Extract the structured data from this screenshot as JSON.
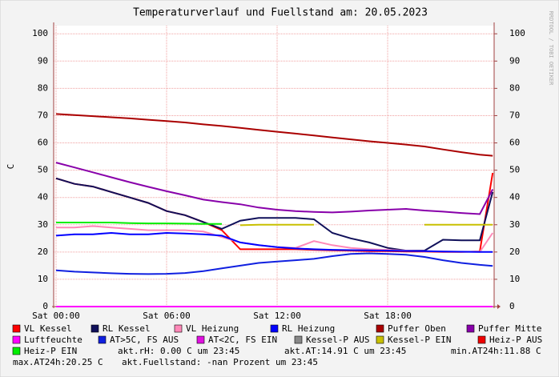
{
  "chart_data": {
    "type": "line",
    "title": "Temperaturverlauf und Fuellstand am: 20.05.2023",
    "ylabel": "C",
    "watermark": "RRDTOOL / TOBI OETIKER",
    "grid": true,
    "x": [
      0,
      1,
      2,
      3,
      4,
      5,
      6,
      7,
      8,
      9,
      10,
      11,
      12,
      13,
      14,
      15,
      16,
      17,
      18,
      19,
      20,
      21,
      22,
      23,
      23.7
    ],
    "xlim": [
      -0.13,
      23.78
    ],
    "xticks": [
      {
        "value": 0,
        "label": "Sat 00:00"
      },
      {
        "value": 6,
        "label": "Sat 06:00"
      },
      {
        "value": 12,
        "label": "Sat 12:00"
      },
      {
        "value": 18,
        "label": "Sat 18:00"
      }
    ],
    "ylim": [
      0,
      103
    ],
    "yticks": [
      0,
      10,
      20,
      30,
      40,
      50,
      60,
      70,
      80,
      90,
      100
    ],
    "y2lim": [
      0,
      103
    ],
    "y2ticks": [
      0,
      10,
      20,
      30,
      40,
      50,
      60,
      70,
      80,
      90,
      100
    ],
    "series": [
      {
        "name": "VL Kessel",
        "color": "#ff0000",
        "values": [
          47,
          45,
          44,
          42,
          40,
          38,
          35,
          33.5,
          31,
          28,
          21,
          21,
          21,
          21,
          20.8,
          20.6,
          20.5,
          20.3,
          20.3,
          20.2,
          20.2,
          20,
          20,
          20.2,
          49
        ]
      },
      {
        "name": "RL Kessel",
        "color": "#10105a",
        "values": [
          47,
          45,
          44,
          42,
          40,
          38,
          35,
          33.5,
          31,
          28.5,
          31.5,
          32.5,
          32.5,
          32.5,
          32,
          27,
          25,
          23.5,
          21.5,
          20.5,
          20.5,
          24.5,
          24.3,
          24.3,
          42
        ]
      },
      {
        "name": "VL Heizung",
        "color": "#ff88b8",
        "values": [
          29,
          29,
          29.5,
          29,
          28.5,
          28,
          28,
          28,
          27.5,
          25.5,
          23.5,
          22.5,
          21.8,
          21.5,
          24,
          22.5,
          21.5,
          21,
          20.8,
          20.5,
          20.3,
          20.2,
          20.1,
          20,
          27
        ]
      },
      {
        "name": "RL Heizung",
        "color": "#0000ff",
        "values": [
          26,
          26.5,
          26.5,
          27,
          26.5,
          26.5,
          27,
          26.8,
          26.5,
          26,
          23.5,
          22.5,
          21.8,
          21.3,
          21,
          20.8,
          20.7,
          20.6,
          20.5,
          20.4,
          20.3,
          20.2,
          20.1,
          20,
          20
        ]
      },
      {
        "name": "Puffer Oben",
        "color": "#aa0000",
        "values": [
          70.6,
          70.2,
          69.8,
          69.4,
          69,
          68.5,
          68,
          67.5,
          66.8,
          66.2,
          65.5,
          64.8,
          64.1,
          63.4,
          62.7,
          62,
          61.3,
          60.6,
          60,
          59.4,
          58.7,
          57.6,
          56.6,
          55.7,
          55.3
        ]
      },
      {
        "name": "Puffer Mitte",
        "color": "#8800aa",
        "values": [
          52.8,
          51,
          49.2,
          47.4,
          45.6,
          43.9,
          42.3,
          40.8,
          39.2,
          38.3,
          37.5,
          36.3,
          35.5,
          35,
          34.7,
          34.5,
          34.8,
          35.2,
          35.5,
          35.8,
          35.2,
          34.8,
          34.3,
          33.9,
          43
        ]
      },
      {
        "name": "Luftfeuchte",
        "color": "#ff00ff",
        "values": [
          0,
          0,
          0,
          0,
          0,
          0,
          0,
          0,
          0,
          0,
          0,
          0,
          0,
          0,
          0,
          0,
          0,
          0,
          0,
          0,
          0,
          0,
          0,
          0,
          0
        ]
      },
      {
        "name": "AT>5C, FS AUS",
        "color": "#1020e0",
        "values": [
          13.3,
          12.8,
          12.5,
          12.2,
          12,
          11.9,
          12,
          12.3,
          13,
          14,
          15,
          16,
          16.5,
          17,
          17.5,
          18.5,
          19.3,
          19.5,
          19.3,
          19,
          18.2,
          17,
          16,
          15.3,
          14.9
        ]
      },
      {
        "name": "AT<2C, FS EIN",
        "color": "#e010e0",
        "values": [
          null,
          null,
          null,
          null,
          null,
          null,
          null,
          null,
          null,
          null,
          null,
          null,
          null,
          null,
          null,
          null,
          null,
          null,
          null,
          null,
          null,
          null,
          null,
          null,
          null
        ]
      },
      {
        "name": "Kessel-P AUS",
        "color": "#888888",
        "values": [
          null,
          null,
          null,
          null,
          null,
          null,
          null,
          null,
          null,
          null,
          null,
          null,
          null,
          null,
          null,
          null,
          null,
          null,
          null,
          null,
          null,
          null,
          null,
          null,
          null
        ]
      },
      {
        "name": "Kessel-P EIN",
        "color": "#c8c000",
        "values": [
          null,
          null,
          null,
          null,
          null,
          null,
          null,
          null,
          null,
          null,
          29.8,
          30,
          30,
          30,
          30,
          null,
          null,
          null,
          null,
          null,
          30,
          30,
          30,
          30,
          30
        ]
      },
      {
        "name": "Heiz-P AUS",
        "color": "#ee0000",
        "values": [
          null,
          null,
          null,
          null,
          null,
          null,
          null,
          null,
          null,
          null,
          null,
          null,
          null,
          null,
          null,
          null,
          null,
          null,
          null,
          null,
          null,
          null,
          null,
          null,
          null
        ]
      },
      {
        "name": "Heiz-P EIN",
        "color": "#00ee00",
        "values": [
          30.8,
          30.8,
          30.8,
          30.8,
          30.6,
          30.5,
          30.5,
          30.4,
          30.3,
          30.3,
          null,
          null,
          null,
          null,
          null,
          null,
          null,
          null,
          null,
          null,
          null,
          null,
          null,
          null,
          null
        ]
      }
    ],
    "annotations": [
      "akt.rH: 0.00 C um 23:45",
      "akt.AT:14.91 C um 23:45",
      "min.AT24h:11.88 C",
      "max.AT24h:20.25 C",
      "akt.Fuellstand: -nan Prozent um 23:45"
    ]
  }
}
